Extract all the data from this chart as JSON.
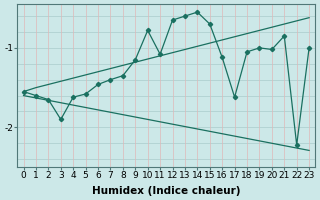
{
  "xlabel": "Humidex (Indice chaleur)",
  "ylabel": "",
  "background_color": "#cce8e8",
  "grid_color_h": "#aacccc",
  "grid_color_v": "#e0b8b8",
  "line_color": "#1a7060",
  "x_data": [
    0,
    1,
    2,
    3,
    4,
    5,
    6,
    7,
    8,
    9,
    10,
    11,
    12,
    13,
    14,
    15,
    16,
    17,
    18,
    19,
    20,
    21,
    22,
    23
  ],
  "y_main": [
    -1.55,
    -1.6,
    -1.65,
    -1.9,
    -1.62,
    -1.58,
    -1.46,
    -1.4,
    -1.35,
    -1.15,
    -0.78,
    -1.08,
    -0.65,
    -0.6,
    -0.55,
    -0.7,
    -1.12,
    -1.62,
    -1.05,
    -1.0,
    -1.02,
    -0.85,
    -2.22,
    -1.0
  ],
  "y_upper": [
    -1.55,
    -1.5,
    -1.46,
    -1.42,
    -1.38,
    -1.34,
    -1.3,
    -1.26,
    -1.22,
    -1.18,
    -1.14,
    -1.1,
    -1.06,
    -1.02,
    -0.98,
    -0.94,
    -0.9,
    -0.86,
    -0.82,
    -0.78,
    -0.74,
    -0.7,
    -0.66,
    -0.62
  ],
  "y_lower": [
    -1.6,
    -1.63,
    -1.66,
    -1.69,
    -1.72,
    -1.75,
    -1.78,
    -1.81,
    -1.84,
    -1.87,
    -1.9,
    -1.93,
    -1.96,
    -1.99,
    -2.02,
    -2.05,
    -2.08,
    -2.11,
    -2.14,
    -2.17,
    -2.2,
    -2.23,
    -2.26,
    -2.29
  ],
  "ylim": [
    -2.5,
    -0.45
  ],
  "xlim": [
    -0.5,
    23.5
  ],
  "yticks": [
    -2.0,
    -1.0
  ],
  "xticks": [
    0,
    1,
    2,
    3,
    4,
    5,
    6,
    7,
    8,
    9,
    10,
    11,
    12,
    13,
    14,
    15,
    16,
    17,
    18,
    19,
    20,
    21,
    22,
    23
  ],
  "tick_fontsize": 6.5,
  "label_fontsize": 7.5
}
